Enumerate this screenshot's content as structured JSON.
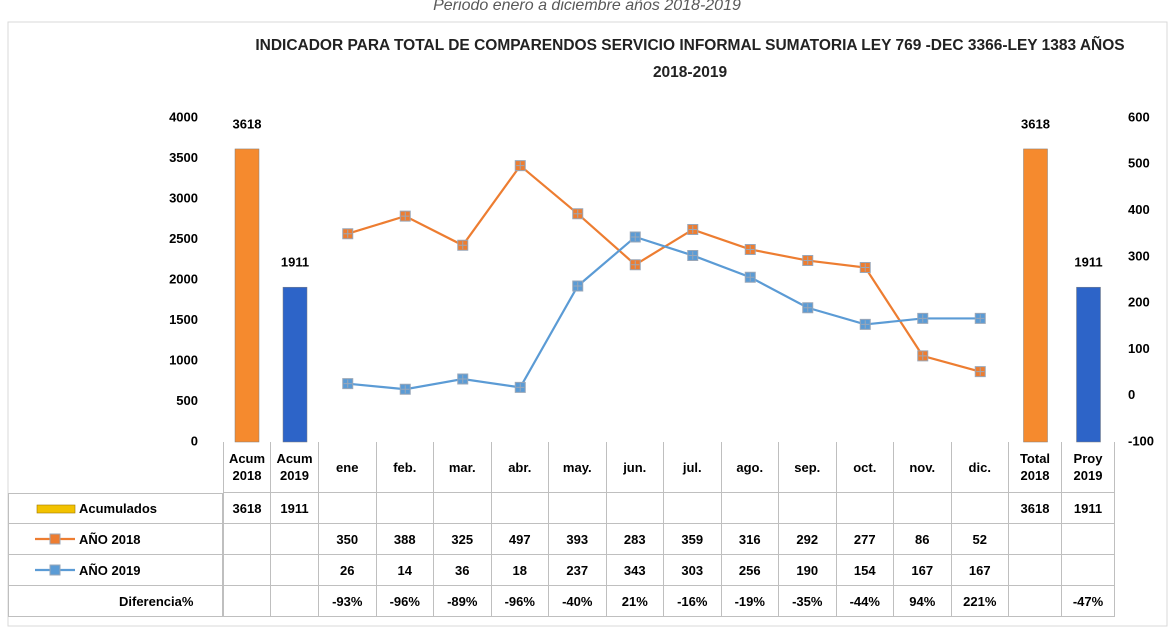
{
  "chart_data": {
    "type": "bar",
    "subtitle": "Periodo enero a diciembre años 2018-2019",
    "title": "INDICADOR PARA TOTAL DE COMPARENDOS SERVICIO INFORMAL SUMATORIA LEY 769 -DEC 3366-LEY 1383 AÑOS 2018-2019",
    "categories": [
      "Acum 2018",
      "Acum 2019",
      "ene",
      "feb.",
      "mar.",
      "abr.",
      "may.",
      "jun.",
      "jul.",
      "ago.",
      "sep.",
      "oct.",
      "nov.",
      "dic.",
      "Total 2018",
      "Proy 2019"
    ],
    "series": [
      {
        "name": "Acumulados",
        "type": "bar",
        "colors": [
          "#f58a2e",
          "#2d64c8",
          null,
          null,
          null,
          null,
          null,
          null,
          null,
          null,
          null,
          null,
          null,
          null,
          "#f58a2e",
          "#2d64c8"
        ],
        "values": [
          3618,
          1911,
          null,
          null,
          null,
          null,
          null,
          null,
          null,
          null,
          null,
          null,
          null,
          null,
          3618,
          1911
        ]
      },
      {
        "name": "AÑO 2018",
        "type": "line",
        "axis": "y2",
        "color": "#ed7d31",
        "values": [
          null,
          null,
          350,
          388,
          325,
          497,
          393,
          283,
          359,
          316,
          292,
          277,
          86,
          52,
          null,
          null
        ]
      },
      {
        "name": "AÑO 2019",
        "type": "line",
        "axis": "y2",
        "color": "#5b9bd5",
        "values": [
          null,
          null,
          26,
          14,
          36,
          18,
          237,
          343,
          303,
          256,
          190,
          154,
          167,
          167,
          null,
          null
        ]
      }
    ],
    "difference": {
      "name": "Diferencia%",
      "values": [
        null,
        null,
        -93,
        -96,
        -89,
        -96,
        -40,
        21,
        -16,
        -19,
        -35,
        -44,
        94,
        221,
        null,
        -47
      ],
      "value_labels": [
        null,
        null,
        "-93%",
        "-96%",
        "-89%",
        "-96%",
        "-40%",
        "21%",
        "-16%",
        "-19%",
        "-35%",
        "-44%",
        "94%",
        "221%",
        null,
        "-47%"
      ]
    },
    "ylim": [
      0,
      4000
    ],
    "yticks": [
      0,
      500,
      1000,
      1500,
      2000,
      2500,
      3000,
      3500,
      4000
    ],
    "y2lim": [
      -100,
      600
    ],
    "y2ticks": [
      -100,
      0,
      100,
      200,
      300,
      400,
      500,
      600
    ]
  }
}
